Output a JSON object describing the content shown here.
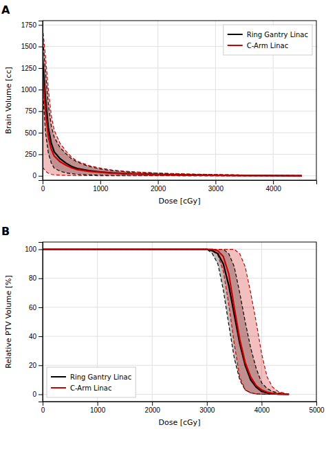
{
  "chart_data": [
    {
      "type": "line",
      "title": "A",
      "x_label": "Dose [cGy]",
      "y_label": "Brain Volume [cc]",
      "xlim": [
        0,
        4750
      ],
      "ylim": [
        -50,
        1800
      ],
      "xticks": [
        0,
        1000,
        2000,
        3000,
        4000
      ],
      "yticks": [
        0,
        250,
        500,
        750,
        1000,
        1250,
        1500,
        1750
      ],
      "grid": true,
      "legend": "upper right",
      "x": [
        0,
        50,
        100,
        150,
        200,
        300,
        400,
        500,
        600,
        800,
        1000,
        1200,
        1500,
        2000,
        2500,
        3000,
        3500,
        4000,
        4500
      ],
      "series": [
        {
          "name": "Ring Gantry Linac",
          "color": "#000000",
          "line_style": "solid",
          "values": [
            1350,
            900,
            550,
            380,
            280,
            200,
            150,
            110,
            85,
            60,
            45,
            35,
            25,
            15,
            10,
            7,
            5,
            3,
            1
          ],
          "upper": [
            1620,
            1200,
            820,
            580,
            450,
            330,
            260,
            200,
            160,
            110,
            80,
            60,
            45,
            30,
            20,
            13,
            9,
            6,
            3
          ],
          "lower": [
            1000,
            500,
            260,
            150,
            90,
            55,
            35,
            25,
            18,
            12,
            8,
            6,
            4,
            2,
            1.5,
            1,
            0.5,
            0.3,
            0.1
          ]
        },
        {
          "name": "C-Arm Linac",
          "color": "#cc0000",
          "line_style": "solid",
          "values": [
            1200,
            750,
            450,
            310,
            230,
            165,
            125,
            93,
            72,
            52,
            40,
            30,
            22,
            13,
            8,
            5,
            3.5,
            2,
            0.8
          ],
          "upper": [
            1720,
            1380,
            1000,
            700,
            530,
            380,
            290,
            220,
            170,
            120,
            90,
            68,
            50,
            32,
            22,
            15,
            10,
            6,
            3
          ],
          "lower": [
            100,
            55,
            30,
            18,
            12,
            8,
            6,
            4,
            3,
            2,
            1.5,
            1,
            0.7,
            0.4,
            0.2,
            0.1,
            0.05,
            0.02,
            0.01
          ]
        }
      ]
    },
    {
      "type": "line",
      "title": "B",
      "x_label": "Dose [cGy]",
      "y_label": "Relative PTV Volume [%]",
      "xlim": [
        0,
        5000
      ],
      "ylim": [
        -5,
        105
      ],
      "xticks": [
        0,
        1000,
        2000,
        3000,
        4000,
        5000
      ],
      "yticks": [
        0,
        20,
        40,
        60,
        80,
        100
      ],
      "grid": true,
      "legend": "lower left",
      "x": [
        0,
        2900,
        3000,
        3100,
        3200,
        3300,
        3400,
        3500,
        3600,
        3700,
        3800,
        3900,
        4000,
        4100,
        4200,
        4300,
        4500
      ],
      "series": [
        {
          "name": "Ring Gantry Linac",
          "color": "#000000",
          "line_style": "solid",
          "values": [
            100,
            100,
            100,
            99,
            97,
            90,
            75,
            55,
            35,
            20,
            10,
            5,
            2,
            1,
            0.5,
            0.2,
            0
          ],
          "upper": [
            100,
            100,
            100,
            100,
            100,
            100,
            97,
            88,
            70,
            50,
            32,
            18,
            8,
            4,
            2,
            1,
            0
          ],
          "lower": [
            100,
            100,
            100,
            97,
            90,
            72,
            48,
            25,
            10,
            3,
            1,
            0.3,
            0.1,
            0,
            0,
            0,
            0
          ]
        },
        {
          "name": "C-Arm Linac",
          "color": "#cc0000",
          "line_style": "solid",
          "values": [
            100,
            100,
            100,
            100,
            99,
            95,
            83,
            60,
            38,
            22,
            12,
            6,
            3,
            1.5,
            0.5,
            0.1,
            0
          ],
          "upper": [
            100,
            100,
            100,
            100,
            100,
            100,
            100,
            100,
            97,
            88,
            70,
            50,
            28,
            12,
            5,
            2,
            0
          ],
          "lower": [
            100,
            100,
            100,
            99,
            96,
            85,
            62,
            35,
            12,
            3,
            1,
            0.3,
            0.1,
            0,
            0,
            0,
            0
          ]
        }
      ]
    }
  ]
}
